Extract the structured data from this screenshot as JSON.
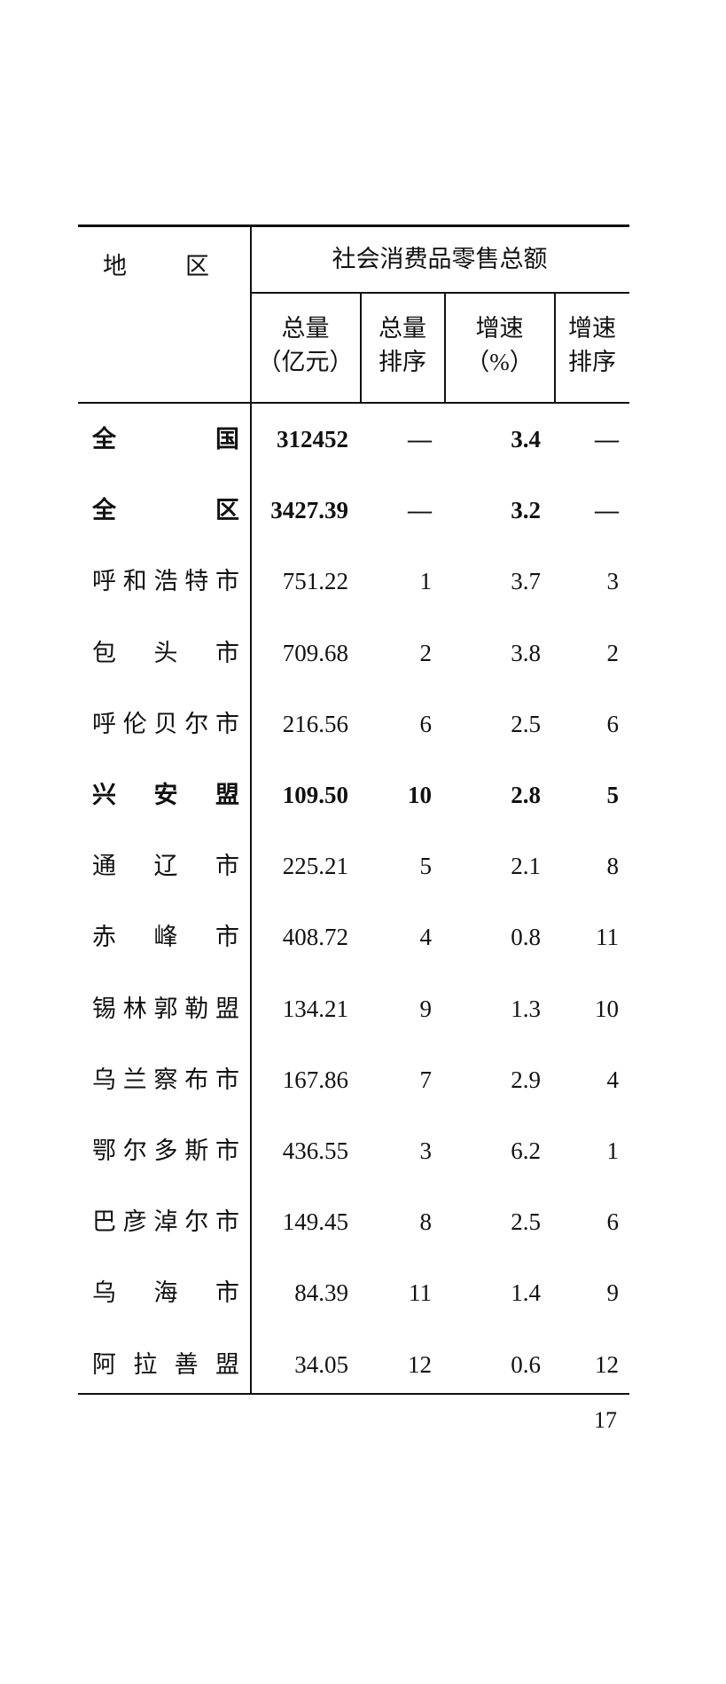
{
  "header": {
    "region": "地区",
    "group": "社会消费品零售总额",
    "columns": [
      {
        "line1": "总量",
        "line2": "（亿元）"
      },
      {
        "line1": "总量",
        "line2": "排序"
      },
      {
        "line1": "增速",
        "line2": "（%）"
      },
      {
        "line1": "增速",
        "line2": "排序"
      }
    ]
  },
  "rows": [
    {
      "region": "全国",
      "total": "312452",
      "total_rank": "—",
      "growth": "3.4",
      "growth_rank": "—",
      "bold": true
    },
    {
      "region": "全区",
      "total": "3427.39",
      "total_rank": "—",
      "growth": "3.2",
      "growth_rank": "—",
      "bold": true
    },
    {
      "region": "呼和浩特市",
      "total": "751.22",
      "total_rank": "1",
      "growth": "3.7",
      "growth_rank": "3",
      "bold": false
    },
    {
      "region": "包头市",
      "total": "709.68",
      "total_rank": "2",
      "growth": "3.8",
      "growth_rank": "2",
      "bold": false
    },
    {
      "region": "呼伦贝尔市",
      "total": "216.56",
      "total_rank": "6",
      "growth": "2.5",
      "growth_rank": "6",
      "bold": false
    },
    {
      "region": "兴安盟",
      "total": "109.50",
      "total_rank": "10",
      "growth": "2.8",
      "growth_rank": "5",
      "bold": true
    },
    {
      "region": "通辽市",
      "total": "225.21",
      "total_rank": "5",
      "growth": "2.1",
      "growth_rank": "8",
      "bold": false
    },
    {
      "region": "赤峰市",
      "total": "408.72",
      "total_rank": "4",
      "growth": "0.8",
      "growth_rank": "11",
      "bold": false
    },
    {
      "region": "锡林郭勒盟",
      "total": "134.21",
      "total_rank": "9",
      "growth": "1.3",
      "growth_rank": "10",
      "bold": false
    },
    {
      "region": "乌兰察布市",
      "total": "167.86",
      "total_rank": "7",
      "growth": "2.9",
      "growth_rank": "4",
      "bold": false
    },
    {
      "region": "鄂尔多斯市",
      "total": "436.55",
      "total_rank": "3",
      "growth": "6.2",
      "growth_rank": "1",
      "bold": false
    },
    {
      "region": "巴彦淖尔市",
      "total": "149.45",
      "total_rank": "8",
      "growth": "2.5",
      "growth_rank": "6",
      "bold": false
    },
    {
      "region": "乌海市",
      "total": "84.39",
      "total_rank": "11",
      "growth": "1.4",
      "growth_rank": "9",
      "bold": false
    },
    {
      "region": "阿拉善盟",
      "total": "34.05",
      "total_rank": "12",
      "growth": "0.6",
      "growth_rank": "12",
      "bold": false
    }
  ],
  "page_number": "17"
}
